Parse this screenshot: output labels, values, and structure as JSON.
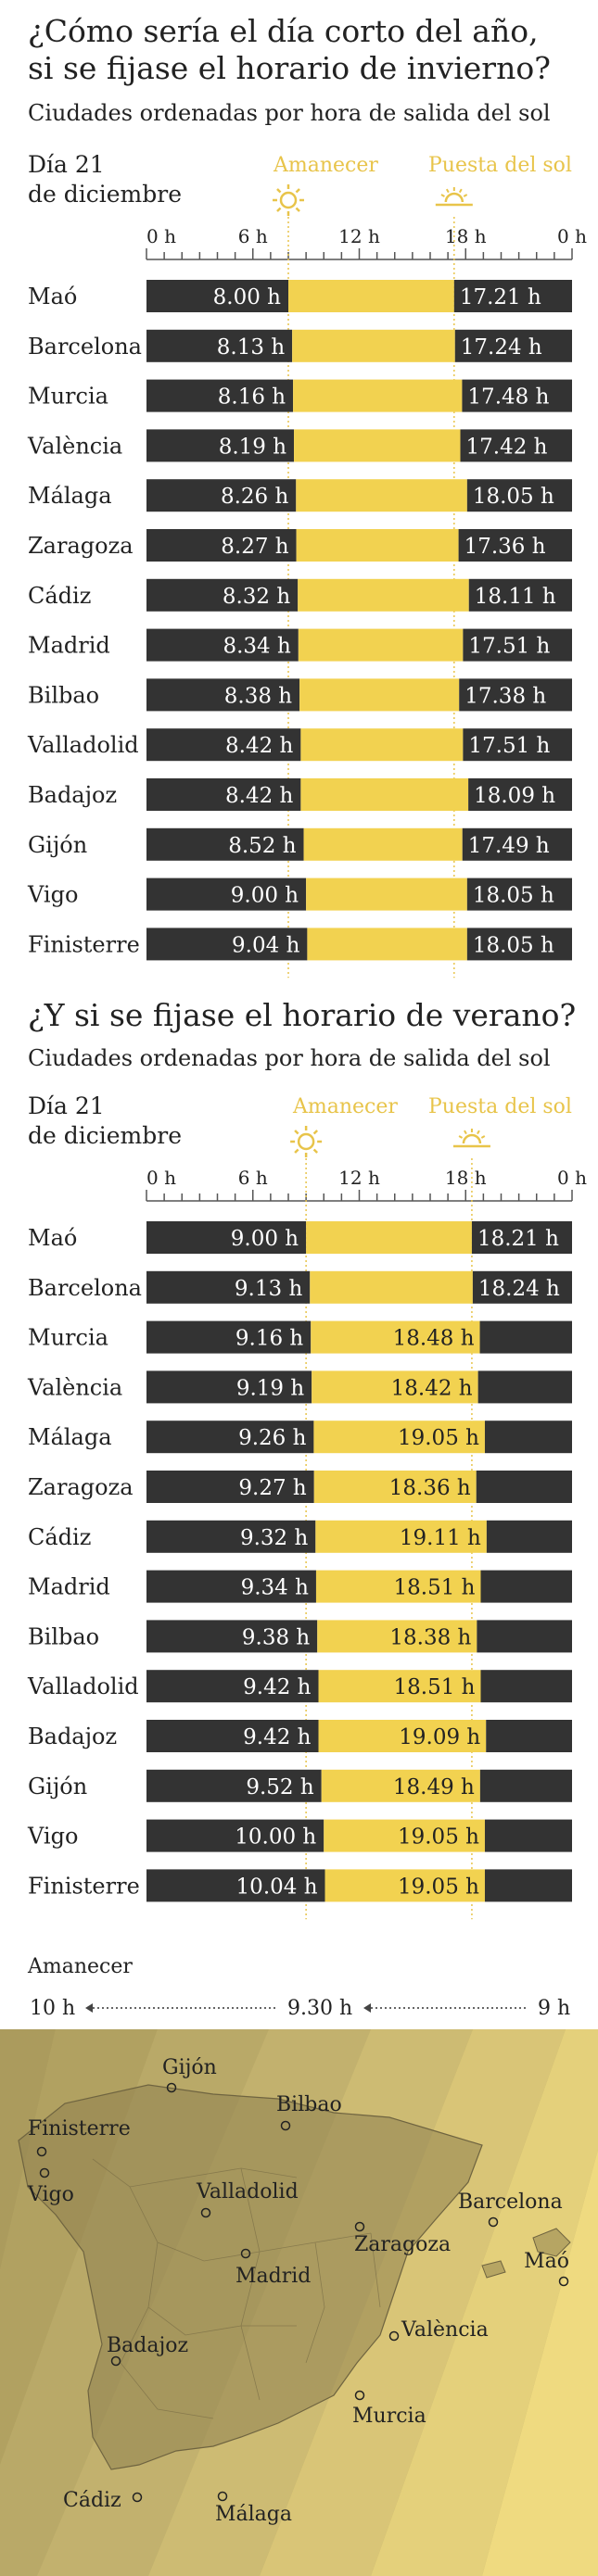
{
  "charts": [
    {
      "title_line1": "¿Cómo sería el día corto del año,",
      "title_line2": "si se fijase el horario de invierno?",
      "subtitle": "Ciudades ordenadas por hora de salida del sol",
      "day_line1": "Día 21",
      "day_line2": "de diciembre",
      "sunrise_label": "Amanecer",
      "sunset_label": "Puesta del sol"
    },
    {
      "title_line1": "¿Y si se fijase el horario de verano?",
      "subtitle": "Ciudades ordenadas por hora de salida del sol",
      "day_line1": "Día 21",
      "day_line2": "de diciembre",
      "sunrise_label": "Amanecer",
      "sunset_label": "Puesta del sol"
    }
  ],
  "chart_data": [
    {
      "type": "bar",
      "orientation": "horizontal-range",
      "xlim": [
        0,
        24
      ],
      "tick_labels": [
        "0 h",
        "6 h",
        "12 h",
        "18 h",
        "0 h"
      ],
      "categories": [
        "Maó",
        "Barcelona",
        "Murcia",
        "València",
        "Málaga",
        "Zaragoza",
        "Cádiz",
        "Madrid",
        "Bilbao",
        "Valladolid",
        "Badajoz",
        "Gijón",
        "Vigo",
        "Finisterre"
      ],
      "sunrise_labels": [
        "8.00 h",
        "8.13 h",
        "8.16 h",
        "8.19 h",
        "8.26 h",
        "8.27 h",
        "8.32 h",
        "8.34 h",
        "8.38 h",
        "8.42 h",
        "8.42 h",
        "8.52 h",
        "9.00 h",
        "9.04 h"
      ],
      "sunset_labels": [
        "17.21 h",
        "17.24 h",
        "17.48 h",
        "17.42 h",
        "18.05 h",
        "17.36 h",
        "18.11 h",
        "17.51 h",
        "17.38 h",
        "17.51 h",
        "18.09 h",
        "17.49 h",
        "18.05 h",
        "18.05 h"
      ],
      "sunrise": [
        8.0,
        8.2167,
        8.2667,
        8.3167,
        8.4333,
        8.45,
        8.5333,
        8.5667,
        8.6333,
        8.7,
        8.7,
        8.8667,
        9.0,
        9.0667
      ],
      "sunset": [
        17.35,
        17.4,
        17.8,
        17.7,
        18.0833,
        17.6,
        18.1833,
        17.85,
        17.6333,
        17.85,
        18.15,
        17.8167,
        18.0833,
        18.0833
      ],
      "sunrise_marker": 8.0,
      "sunset_marker": 17.35,
      "colors": {
        "night": "#333333",
        "day": "#f2d250",
        "accent": "#e8c44a"
      }
    },
    {
      "type": "bar",
      "orientation": "horizontal-range",
      "xlim": [
        0,
        24
      ],
      "tick_labels": [
        "0 h",
        "6 h",
        "12 h",
        "18 h",
        "0 h"
      ],
      "categories": [
        "Maó",
        "Barcelona",
        "Murcia",
        "València",
        "Málaga",
        "Zaragoza",
        "Cádiz",
        "Madrid",
        "Bilbao",
        "Valladolid",
        "Badajoz",
        "Gijón",
        "Vigo",
        "Finisterre"
      ],
      "sunrise_labels": [
        "9.00 h",
        "9.13 h",
        "9.16 h",
        "9.19 h",
        "9.26 h",
        "9.27 h",
        "9.32 h",
        "9.34 h",
        "9.38 h",
        "9.42 h",
        "9.42 h",
        "9.52 h",
        "10.00 h",
        "10.04 h"
      ],
      "sunset_labels": [
        "18.21 h",
        "18.24 h",
        "18.48 h",
        "18.42 h",
        "19.05 h",
        "18.36 h",
        "19.11 h",
        "18.51 h",
        "18.38 h",
        "18.51 h",
        "19.09 h",
        "18.49 h",
        "19.05 h",
        "19.05 h"
      ],
      "sunrise": [
        9.0,
        9.2167,
        9.2667,
        9.3167,
        9.4333,
        9.45,
        9.5333,
        9.5667,
        9.6333,
        9.7,
        9.7,
        9.8667,
        10.0,
        10.0667
      ],
      "sunset": [
        18.35,
        18.4,
        18.8,
        18.7,
        19.0833,
        18.6,
        19.1833,
        18.85,
        18.6333,
        18.85,
        19.15,
        18.8167,
        19.0833,
        19.0833
      ],
      "sunrise_marker": 9.0,
      "sunset_marker": 18.35,
      "colors": {
        "night": "#333333",
        "day": "#f2d250",
        "accent": "#e8c44a"
      }
    }
  ],
  "map": {
    "gradient_title": "Amanecer",
    "gradient_left": "10 h",
    "gradient_mid": "9.30 h",
    "gradient_right": "9 h",
    "cities": [
      "Gijón",
      "Bilbao",
      "Finisterre",
      "Vigo",
      "Valladolid",
      "Barcelona",
      "Zaragoza",
      "Maó",
      "Madrid",
      "València",
      "Badajoz",
      "Murcia",
      "Cádiz",
      "Málaga"
    ]
  }
}
